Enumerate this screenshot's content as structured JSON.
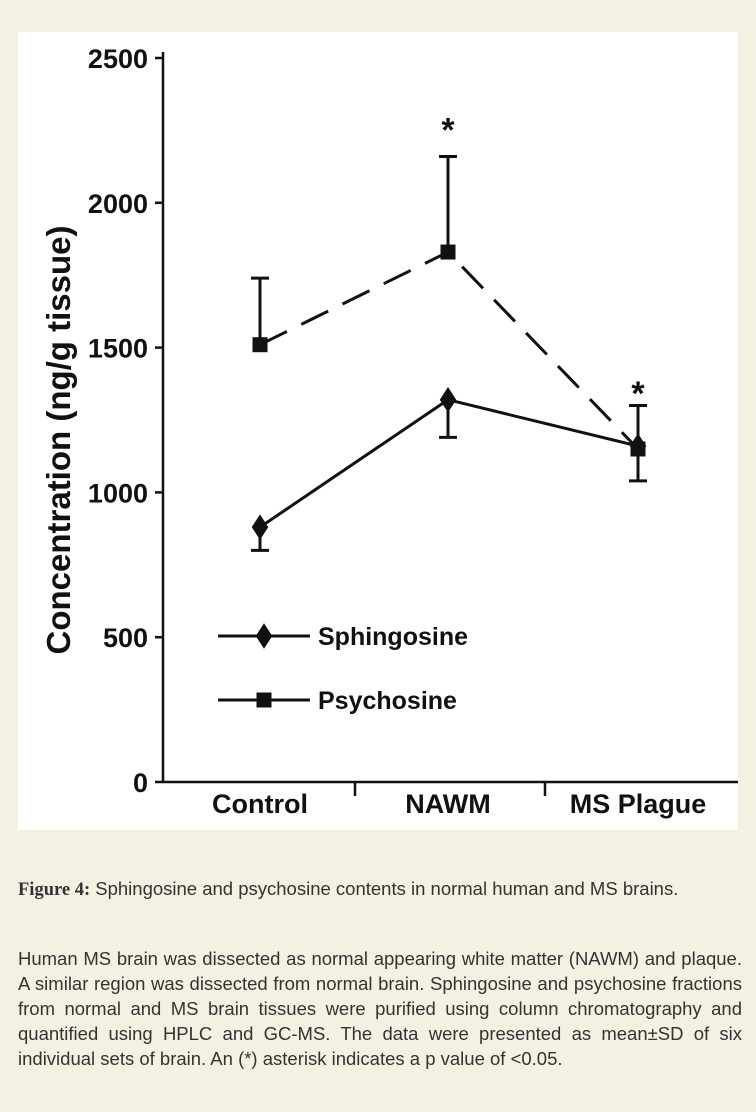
{
  "chart_data": {
    "type": "line",
    "ylabel": "Concentration (ng/g tissue)",
    "categories": [
      "Control",
      "NAWM",
      "MS Plague"
    ],
    "ylim": [
      0,
      2500
    ],
    "yticks": [
      0,
      500,
      1000,
      1500,
      2000,
      2500
    ],
    "legend_position": "bottom-left",
    "series": [
      {
        "name": "Sphingosine",
        "marker": "diamond",
        "line_style": "solid",
        "values": [
          880,
          1320,
          1160
        ],
        "errors": [
          80,
          130,
          120
        ],
        "error_direction": "down"
      },
      {
        "name": "Psychosine",
        "marker": "square",
        "line_style": "dashed",
        "values": [
          1510,
          1830,
          1150
        ],
        "errors": [
          230,
          330,
          150
        ],
        "error_direction": "up"
      }
    ],
    "annotations": [
      {
        "category": "NAWM",
        "text": "*",
        "value": 2280
      },
      {
        "category": "MS Plague",
        "text": "*",
        "value": 1370
      }
    ]
  },
  "caption": {
    "figure_label": "Figure 4:",
    "title_text": " Sphingosine and psychosine contents in normal human and MS brains.",
    "body": "Human MS brain was dissected as normal appearing white matter (NAWM) and plaque. A similar region was dissected from normal brain. Sphingosine and psychosine fractions from normal and MS brain tissues were purified using column chromatography and quantified using HPLC and GC-MS. The data were presented as mean±SD of six individual sets of brain. An (*) asterisk indicates a p value of <0.05."
  },
  "colors": {
    "page_background": "#f3f1e2",
    "panel_background": "#ffffff",
    "ink": "#111111",
    "caption_text": "#333333"
  }
}
